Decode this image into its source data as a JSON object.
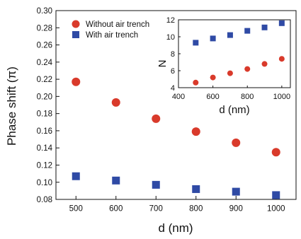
{
  "chart_data": [
    {
      "type": "scatter",
      "xlabel": "d (nm)",
      "ylabel": "Phase shift (π)",
      "xlim": [
        450,
        1050
      ],
      "ylim": [
        0.08,
        0.3
      ],
      "xticks": [
        "500",
        "600",
        "700",
        "800",
        "900",
        "1000"
      ],
      "yticks": [
        "0.08",
        "0.10",
        "0.12",
        "0.14",
        "0.16",
        "0.18",
        "0.20",
        "0.22",
        "0.24",
        "0.26",
        "0.28",
        "0.30"
      ],
      "legend_position": "top",
      "grid": false,
      "series": [
        {
          "name": "Without air trench",
          "marker": "circle",
          "color": "#d93a2b",
          "x": [
            500,
            600,
            700,
            800,
            900,
            1000
          ],
          "y": [
            0.217,
            0.193,
            0.174,
            0.159,
            0.146,
            0.135
          ]
        },
        {
          "name": "With air trench",
          "marker": "square",
          "color": "#2f4aa5",
          "x": [
            500,
            600,
            700,
            800,
            900,
            1000
          ],
          "y": [
            0.107,
            0.102,
            0.097,
            0.092,
            0.089,
            0.085
          ]
        }
      ]
    },
    {
      "type": "scatter",
      "xlabel": "d (nm)",
      "ylabel": "N",
      "xlim": [
        400,
        1050
      ],
      "ylim": [
        4,
        12
      ],
      "xticks": [
        "400",
        "600",
        "800",
        "1000"
      ],
      "yticks": [
        "4",
        "6",
        "8",
        "10",
        "12"
      ],
      "grid": false,
      "series": [
        {
          "marker": "square",
          "color": "#2f4aa5",
          "x": [
            500,
            600,
            700,
            800,
            900,
            1000
          ],
          "y": [
            9.3,
            9.8,
            10.2,
            10.7,
            11.1,
            11.6
          ]
        },
        {
          "marker": "circle",
          "color": "#d93a2b",
          "x": [
            500,
            600,
            700,
            800,
            900,
            1000
          ],
          "y": [
            4.6,
            5.2,
            5.7,
            6.2,
            6.8,
            7.4
          ]
        }
      ]
    }
  ]
}
